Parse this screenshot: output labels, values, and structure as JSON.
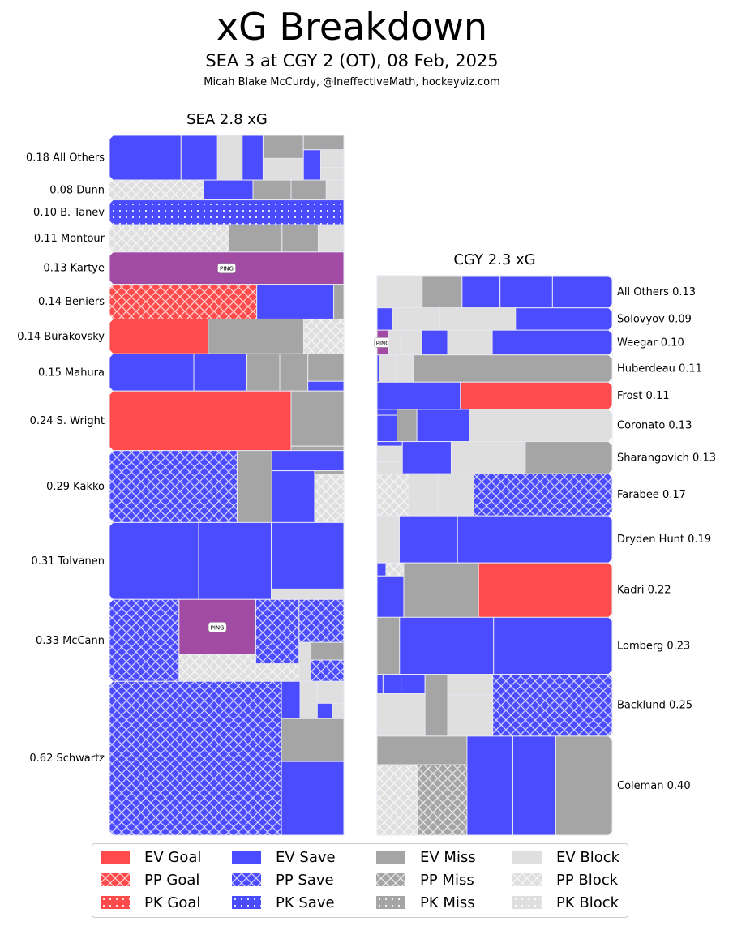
{
  "header": {
    "title": "xG Breakdown",
    "subtitle": "SEA 3 at CGY 2 (OT), 08 Feb, 2025",
    "credit": "Micah Blake McCurdy, @IneffectiveMath, hockeyviz.com"
  },
  "colors": {
    "goal": "#ff4b4b",
    "save": "#4b4bff",
    "miss": "#a5a5a5",
    "block": "#dfdfdf",
    "ping": "#a24ba4"
  },
  "annotation_label": "PING",
  "chart_data": {
    "type": "treemap",
    "title": "xG Breakdown",
    "subtitle": "SEA 3 at CGY 2 (OT), 08 Feb, 2025",
    "teams": [
      {
        "team": "SEA",
        "title": "SEA 2.8 xG",
        "total_xg": 2.8,
        "label_side": "left",
        "players": [
          {
            "name": "All Others",
            "xg": 0.18,
            "label": "0.18 All Others",
            "shots": [
              {
                "type": "EV Save",
                "xg": 0.055
              },
              {
                "type": "EV Save",
                "xg": 0.028
              },
              {
                "type": "EV Block",
                "xg": 0.019
              },
              {
                "type": "EV Save",
                "xg": 0.016
              },
              {
                "type": "EV Miss",
                "xg": 0.016
              },
              {
                "type": "EV Block",
                "xg": 0.015
              },
              {
                "type": "EV Miss",
                "xg": 0.01
              },
              {
                "type": "EV Save",
                "xg": 0.009
              },
              {
                "type": "EV Block",
                "xg": 0.007
              },
              {
                "type": "EV Block",
                "xg": 0.005
              }
            ]
          },
          {
            "name": "Dunn",
            "xg": 0.08,
            "label": "0.08 Dunn",
            "shots": [
              {
                "type": "PP Block",
                "xg": 0.032
              },
              {
                "type": "EV Save",
                "xg": 0.017
              },
              {
                "type": "EV Miss",
                "xg": 0.013
              },
              {
                "type": "EV Miss",
                "xg": 0.012
              },
              {
                "type": "EV Block",
                "xg": 0.006
              }
            ]
          },
          {
            "name": "B. Tanev",
            "xg": 0.1,
            "label": "0.10 B. Tanev",
            "shots": [
              {
                "type": "PK Save",
                "xg": 0.1
              }
            ]
          },
          {
            "name": "Montour",
            "xg": 0.11,
            "label": "0.11 Montour",
            "shots": [
              {
                "type": "PP Block",
                "xg": 0.056
              },
              {
                "type": "EV Miss",
                "xg": 0.025
              },
              {
                "type": "EV Miss",
                "xg": 0.017
              },
              {
                "type": "EV Block",
                "xg": 0.012
              }
            ]
          },
          {
            "name": "Kartye",
            "xg": 0.13,
            "label": "0.13 Kartye",
            "shots": [
              {
                "type": "EV Ping",
                "xg": 0.13,
                "annotation": "PING"
              }
            ]
          },
          {
            "name": "Beniers",
            "xg": 0.14,
            "label": "0.14 Beniers",
            "shots": [
              {
                "type": "PP Goal",
                "xg": 0.088
              },
              {
                "type": "EV Save",
                "xg": 0.046
              },
              {
                "type": "EV Miss",
                "xg": 0.006
              }
            ]
          },
          {
            "name": "Burakovsky",
            "xg": 0.14,
            "label": "0.14 Burakovsky",
            "shots": [
              {
                "type": "EV Goal",
                "xg": 0.059
              },
              {
                "type": "EV Miss",
                "xg": 0.057
              },
              {
                "type": "PP Block",
                "xg": 0.024
              }
            ]
          },
          {
            "name": "Mahura",
            "xg": 0.15,
            "label": "0.15 Mahura",
            "shots": [
              {
                "type": "EV Save",
                "xg": 0.054
              },
              {
                "type": "EV Save",
                "xg": 0.034
              },
              {
                "type": "EV Miss",
                "xg": 0.021
              },
              {
                "type": "EV Miss",
                "xg": 0.018
              },
              {
                "type": "EV Miss",
                "xg": 0.017
              },
              {
                "type": "EV Save",
                "xg": 0.006
              }
            ]
          },
          {
            "name": "S. Wright",
            "xg": 0.24,
            "label": "0.24 S. Wright",
            "shots": [
              {
                "type": "EV Goal",
                "xg": 0.186
              },
              {
                "type": "EV Miss",
                "xg": 0.05
              },
              {
                "type": "EV Miss",
                "xg": 0.004
              }
            ]
          },
          {
            "name": "Kakko",
            "xg": 0.29,
            "label": "0.29 Kakko",
            "shots": [
              {
                "type": "PP Save",
                "xg": 0.158
              },
              {
                "type": "EV Miss",
                "xg": 0.043
              },
              {
                "type": "EV Save",
                "xg": 0.025
              },
              {
                "type": "EV Save",
                "xg": 0.038
              },
              {
                "type": "EV Miss",
                "xg": 0.002
              },
              {
                "type": "PP Block",
                "xg": 0.024
              }
            ]
          },
          {
            "name": "Tolvanen",
            "xg": 0.31,
            "label": "0.31 Tolvanen",
            "shots": [
              {
                "type": "EV Save",
                "xg": 0.118
              },
              {
                "type": "EV Save",
                "xg": 0.096
              },
              {
                "type": "EV Save",
                "xg": 0.083
              },
              {
                "type": "EV Block",
                "xg": 0.013
              }
            ]
          },
          {
            "name": "McCann",
            "xg": 0.33,
            "label": "0.33 McCann",
            "shots": [
              {
                "type": "PP Save",
                "xg": 0.098
              },
              {
                "type": "EV Ping",
                "xg": 0.073,
                "annotation": "PING"
              },
              {
                "type": "PP Block",
                "xg": 0.035
              },
              {
                "type": "PP Save",
                "xg": 0.048
              },
              {
                "type": "PP Block",
                "xg": 0.013
              },
              {
                "type": "PP Save",
                "xg": 0.033
              },
              {
                "type": "EV Block",
                "xg": 0.008
              },
              {
                "type": "EV Miss",
                "xg": 0.01
              },
              {
                "type": "PP Save",
                "xg": 0.012
              }
            ]
          },
          {
            "name": "Schwartz",
            "xg": 0.62,
            "label": "0.62 Schwartz",
            "shots": [
              {
                "type": "PP Save",
                "xg": 0.455
              },
              {
                "type": "EV Save",
                "xg": 0.012
              },
              {
                "type": "EV Block",
                "xg": 0.011
              },
              {
                "type": "EV Block",
                "xg": 0.01
              },
              {
                "type": "EV Save",
                "xg": 0.004
              },
              {
                "type": "EV Block",
                "xg": 0.003
              },
              {
                "type": "EV Miss",
                "xg": 0.046
              },
              {
                "type": "EV Save",
                "xg": 0.079
              }
            ]
          }
        ]
      },
      {
        "team": "CGY",
        "title": "CGY 2.3 xG",
        "total_xg": 2.3,
        "label_side": "right",
        "players": [
          {
            "name": "All Others",
            "xg": 0.13,
            "label": "All Others 0.13",
            "shots": [
              {
                "type": "EV Block",
                "xg": 0.006
              },
              {
                "type": "EV Block",
                "xg": 0.019
              },
              {
                "type": "EV Miss",
                "xg": 0.022
              },
              {
                "type": "EV Save",
                "xg": 0.021
              },
              {
                "type": "EV Save",
                "xg": 0.029
              },
              {
                "type": "EV Save",
                "xg": 0.033
              }
            ]
          },
          {
            "name": "Solovyov",
            "xg": 0.09,
            "label": "Solovyov 0.09",
            "shots": [
              {
                "type": "EV Save",
                "xg": 0.006
              },
              {
                "type": "EV Block",
                "xg": 0.018
              },
              {
                "type": "EV Block",
                "xg": 0.029
              },
              {
                "type": "EV Save",
                "xg": 0.037
              }
            ]
          },
          {
            "name": "Weegar",
            "xg": 0.1,
            "label": "Weegar 0.10",
            "shots": [
              {
                "type": "EV Ping",
                "xg": 0.005,
                "annotation": "PING"
              },
              {
                "type": "EV Block",
                "xg": 0.005
              },
              {
                "type": "EV Block",
                "xg": 0.009
              },
              {
                "type": "EV Save",
                "xg": 0.011
              },
              {
                "type": "EV Block",
                "xg": 0.019
              },
              {
                "type": "EV Save",
                "xg": 0.051
              }
            ]
          },
          {
            "name": "Huberdeau",
            "xg": 0.11,
            "label": "Huberdeau 0.11",
            "shots": [
              {
                "type": "EV Save",
                "xg": 0.001
              },
              {
                "type": "EV Block",
                "xg": 0.008
              },
              {
                "type": "EV Block",
                "xg": 0.008
              },
              {
                "type": "EV Miss",
                "xg": 0.093
              }
            ]
          },
          {
            "name": "Frost",
            "xg": 0.11,
            "label": "Frost 0.11",
            "shots": [
              {
                "type": "EV Save",
                "xg": 0.039
              },
              {
                "type": "EV Goal",
                "xg": 0.071
              }
            ]
          },
          {
            "name": "Coronato",
            "xg": 0.13,
            "label": "Coronato 0.13",
            "shots": [
              {
                "type": "EV Save",
                "xg": 0.002
              },
              {
                "type": "EV Save",
                "xg": 0.009
              },
              {
                "type": "EV Miss",
                "xg": 0.011
              },
              {
                "type": "EV Save",
                "xg": 0.029
              },
              {
                "type": "EV Block",
                "xg": 0.079
              }
            ]
          },
          {
            "name": "Sharangovich",
            "xg": 0.13,
            "label": "Sharangovich 0.13",
            "shots": [
              {
                "type": "EV Save",
                "xg": 0.002
              },
              {
                "type": "EV Block",
                "xg": 0.007
              },
              {
                "type": "EV Block",
                "xg": 0.005
              },
              {
                "type": "EV Save",
                "xg": 0.027
              },
              {
                "type": "EV Block",
                "xg": 0.041
              },
              {
                "type": "EV Miss",
                "xg": 0.048
              }
            ]
          },
          {
            "name": "Farabee",
            "xg": 0.17,
            "label": "Farabee 0.17",
            "shots": [
              {
                "type": "PP Block",
                "xg": 0.023
              },
              {
                "type": "EV Block",
                "xg": 0.021
              },
              {
                "type": "EV Block",
                "xg": 0.026
              },
              {
                "type": "PP Save",
                "xg": 0.1
              }
            ]
          },
          {
            "name": "Dryden Hunt",
            "xg": 0.19,
            "label": "Dryden Hunt 0.19",
            "shots": [
              {
                "type": "EV Block",
                "xg": 0.018
              },
              {
                "type": "EV Save",
                "xg": 0.047
              },
              {
                "type": "EV Save",
                "xg": 0.125
              }
            ]
          },
          {
            "name": "Kadri",
            "xg": 0.22,
            "label": "Kadri 0.22",
            "shots": [
              {
                "type": "EV Save",
                "xg": 0.002
              },
              {
                "type": "PP Block",
                "xg": 0.004
              },
              {
                "type": "EV Save",
                "xg": 0.019
              },
              {
                "type": "EV Miss",
                "xg": 0.07
              },
              {
                "type": "EV Goal",
                "xg": 0.125
              }
            ]
          },
          {
            "name": "Lomberg",
            "xg": 0.23,
            "label": "Lomberg 0.23",
            "shots": [
              {
                "type": "EV Miss",
                "xg": 0.022
              },
              {
                "type": "EV Save",
                "xg": 0.092
              },
              {
                "type": "EV Save",
                "xg": 0.116
              }
            ]
          },
          {
            "name": "Backlund",
            "xg": 0.25,
            "label": "Backlund 0.25",
            "shots": [
              {
                "type": "EV Save",
                "xg": 0.002
              },
              {
                "type": "EV Save",
                "xg": 0.006
              },
              {
                "type": "EV Save",
                "xg": 0.008
              },
              {
                "type": "EV Block",
                "xg": 0.011
              },
              {
                "type": "EV Block",
                "xg": 0.024
              },
              {
                "type": "EV Miss",
                "xg": 0.024
              },
              {
                "type": "EV Block",
                "xg": 0.016
              },
              {
                "type": "EV Block",
                "xg": 0.032
              },
              {
                "type": "PP Save",
                "xg": 0.127
              }
            ]
          },
          {
            "name": "Coleman",
            "xg": 0.4,
            "label": "Coleman 0.40",
            "shots": [
              {
                "type": "EV Miss",
                "xg": 0.044
              },
              {
                "type": "PP Block",
                "xg": 0.049
              },
              {
                "type": "PP Miss",
                "xg": 0.06
              },
              {
                "type": "EV Save",
                "xg": 0.078
              },
              {
                "type": "EV Save",
                "xg": 0.073
              },
              {
                "type": "EV Miss",
                "xg": 0.096
              }
            ]
          }
        ]
      }
    ],
    "legend": {
      "placement": "bottom",
      "entries": [
        {
          "label": "EV Goal",
          "type": "EV Goal"
        },
        {
          "label": "EV Save",
          "type": "EV Save"
        },
        {
          "label": "EV Miss",
          "type": "EV Miss"
        },
        {
          "label": "EV Block",
          "type": "EV Block"
        },
        {
          "label": "PP Goal",
          "type": "PP Goal"
        },
        {
          "label": "PP Save",
          "type": "PP Save"
        },
        {
          "label": "PP Miss",
          "type": "PP Miss"
        },
        {
          "label": "PP Block",
          "type": "PP Block"
        },
        {
          "label": "PK Goal",
          "type": "PK Goal"
        },
        {
          "label": "PK Save",
          "type": "PK Save"
        },
        {
          "label": "PK Miss",
          "type": "PK Miss"
        },
        {
          "label": "PK Block",
          "type": "PK Block"
        }
      ]
    }
  }
}
